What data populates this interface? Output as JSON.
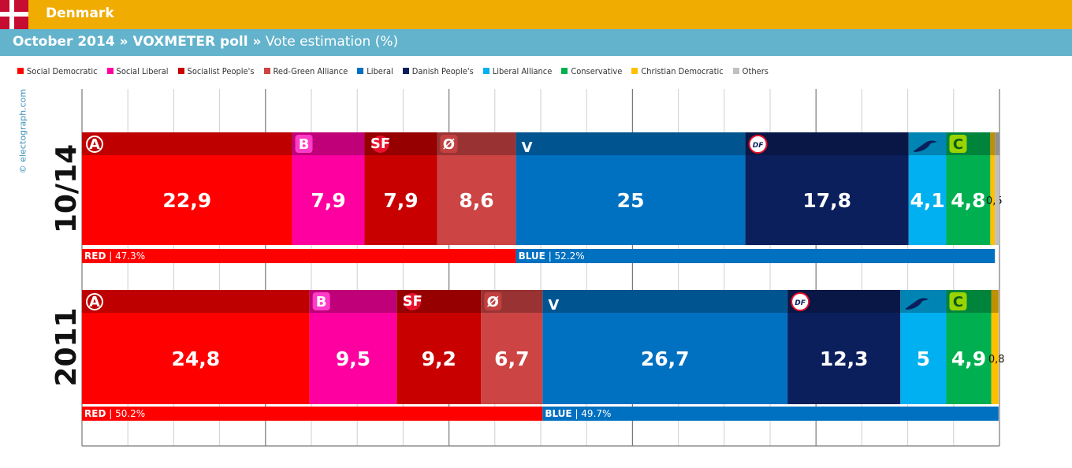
{
  "header": {
    "country": "Denmark",
    "title_bold": "October 2014 » VOXMETER poll »",
    "title_rest": " Vote estimation (%)"
  },
  "credit": "© electograph.com",
  "legend": [
    {
      "name": "Social Democratic",
      "color": "#ff0000"
    },
    {
      "name": "Social Liberal",
      "color": "#ff00a0"
    },
    {
      "name": "Socialist People's",
      "color": "#c80000"
    },
    {
      "name": "Red-Green Alliance",
      "color": "#cc4444"
    },
    {
      "name": "Liberal",
      "color": "#0070c0"
    },
    {
      "name": "Danish People's",
      "color": "#0b1f5c"
    },
    {
      "name": "Liberal Alliance",
      "color": "#00b0f0"
    },
    {
      "name": "Conservative",
      "color": "#00b050"
    },
    {
      "name": "Christian Democratic",
      "color": "#ffc000"
    },
    {
      "name": "Others",
      "color": "#c0c0c0"
    }
  ],
  "chart_data": {
    "type": "bar",
    "stacked": true,
    "orientation": "horizontal",
    "categories": [
      "10/14",
      "2011"
    ],
    "series": [
      {
        "name": "Social Democratic",
        "logo": "A",
        "values": [
          22.9,
          24.8
        ]
      },
      {
        "name": "Social Liberal",
        "logo": "B",
        "values": [
          7.9,
          9.5
        ]
      },
      {
        "name": "Socialist People's",
        "logo": "SF",
        "values": [
          7.9,
          9.2
        ]
      },
      {
        "name": "Red-Green Alliance",
        "logo": "Ø",
        "values": [
          8.6,
          6.7
        ]
      },
      {
        "name": "Liberal",
        "logo": "V",
        "values": [
          25,
          26.7
        ]
      },
      {
        "name": "Danish People's",
        "logo": "DF",
        "values": [
          17.8,
          12.3
        ]
      },
      {
        "name": "Liberal Alliance",
        "logo": "swallow",
        "values": [
          4.1,
          5
        ]
      },
      {
        "name": "Conservative",
        "logo": "C",
        "values": [
          4.8,
          4.9
        ]
      },
      {
        "name": "Christian Democratic",
        "logo": "",
        "values": [
          0.5,
          0.8
        ]
      },
      {
        "name": "Others",
        "logo": "",
        "values": [
          0.5,
          0
        ]
      }
    ],
    "value_labels": [
      [
        "22,9",
        "7,9",
        "7,9",
        "8,6",
        "25",
        "17,8",
        "4,1",
        "4,8",
        "0,5",
        ""
      ],
      [
        "24,8",
        "9,5",
        "9,2",
        "6,7",
        "26,7",
        "12,3",
        "5",
        "4,9",
        "0,8",
        ""
      ]
    ],
    "blocs": [
      [
        {
          "label": "RED",
          "value": "47.3%",
          "color": "#ff0000",
          "share": 47.3
        },
        {
          "label": "BLUE",
          "value": "52.2%",
          "color": "#0070c0",
          "share": 52.2
        }
      ],
      [
        {
          "label": "RED",
          "value": "50.2%",
          "color": "#ff0000",
          "share": 50.2
        },
        {
          "label": "BLUE",
          "value": "49.7%",
          "color": "#0070c0",
          "share": 49.7
        }
      ]
    ],
    "xlim": [
      0,
      100
    ],
    "grid": true
  }
}
